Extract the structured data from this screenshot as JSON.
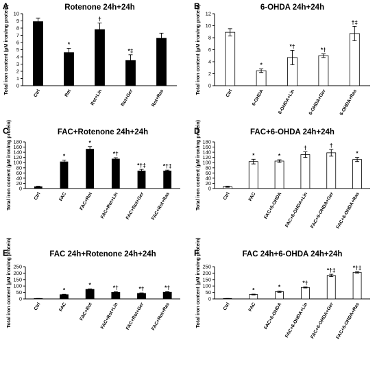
{
  "chart_data": [
    {
      "panel": "A",
      "type": "bar",
      "title": "Rotenone 24h+24h",
      "ylabel": "Total iron content (μM iron/mg protein)",
      "ylim": [
        0,
        10
      ],
      "yticks": [
        0,
        1,
        2,
        3,
        4,
        5,
        6,
        7,
        8,
        9,
        10
      ],
      "bar_fill": "#000000",
      "categories": [
        "Ctrl",
        "Rot",
        "Rot+Lin",
        "Rot+Ger",
        "Rot+Ras"
      ],
      "values": [
        8.9,
        4.6,
        7.8,
        3.5,
        6.6
      ],
      "errors": [
        0.5,
        0.6,
        0.9,
        0.8,
        0.7
      ],
      "annotations": [
        "",
        "*",
        "†",
        "*‡",
        ""
      ]
    },
    {
      "panel": "B",
      "type": "bar",
      "title": "6-OHDA 24h+24h",
      "ylabel": "Total iron content (μM iron/mg protein)",
      "ylim": [
        0,
        12
      ],
      "yticks": [
        0,
        2,
        4,
        6,
        8,
        10,
        12
      ],
      "bar_fill": "#ffffff",
      "categories": [
        "Ctrl",
        "6-OHDA",
        "6-OHDA+Lin",
        "6-OHDA+Ger",
        "6-OHDA+Ras"
      ],
      "values": [
        8.9,
        2.5,
        4.7,
        5.0,
        8.7
      ],
      "errors": [
        0.6,
        0.3,
        1.2,
        0.3,
        1.2
      ],
      "annotations": [
        "",
        "*",
        "*†",
        "*†",
        "†‡"
      ]
    },
    {
      "panel": "C",
      "type": "bar",
      "title": "FAC+Rotenone 24h+24h",
      "ylabel": "Total iron content (μM iron/mg protein)",
      "ylim": [
        0,
        180
      ],
      "yticks": [
        0,
        20,
        40,
        60,
        80,
        100,
        120,
        140,
        160,
        180
      ],
      "bar_fill": "#000000",
      "categories": [
        "Ctrl",
        "FAC",
        "FAC+Rot",
        "FAC+Rot+Lin",
        "FAC+Rot+Ger",
        "FAC+Rot+Ras"
      ],
      "values": [
        7,
        103,
        152,
        114,
        68,
        68
      ],
      "errors": [
        2,
        7,
        10,
        5,
        6,
        3
      ],
      "annotations": [
        "",
        "*",
        "*",
        "*†",
        "*†‡",
        "*†‡"
      ]
    },
    {
      "panel": "D",
      "type": "bar",
      "title": "FAC+6-OHDA 24h+24h",
      "ylabel": "Total iron content (μM iron/mg protein)",
      "ylim": [
        0,
        180
      ],
      "yticks": [
        0,
        20,
        40,
        60,
        80,
        100,
        120,
        140,
        160,
        180
      ],
      "bar_fill": "#ffffff",
      "categories": [
        "Ctrl",
        "FAC",
        "FAC+6-OHDA",
        "FAC+6-OHDA+Lin",
        "FAC+6-OHDA+Ger",
        "FAC+6-OHDA+Ras"
      ],
      "values": [
        7,
        104,
        106,
        131,
        138,
        112
      ],
      "errors": [
        2,
        9,
        5,
        11,
        13,
        8
      ],
      "annotations": [
        "",
        "*",
        "*",
        "†",
        "†",
        "*"
      ]
    },
    {
      "panel": "E",
      "type": "bar",
      "title": "FAC 24h+Rotenone 24h+24h",
      "ylabel": "Total iron content (μM iron/mg protein)",
      "ylim": [
        0,
        250
      ],
      "yticks": [
        0,
        50,
        100,
        150,
        200,
        250
      ],
      "bar_fill": "#000000",
      "categories": [
        "Ctrl",
        "FAC",
        "FAC+Rot",
        "FAC+Rot+Lin",
        "FAC+Rot+Ger",
        "FAC+Rot+Ras"
      ],
      "values": [
        3,
        33,
        74,
        51,
        43,
        52
      ],
      "errors": [
        1,
        3,
        4,
        4,
        4,
        4
      ],
      "annotations": [
        "",
        "*",
        "*",
        "*†",
        "*†",
        "*†"
      ]
    },
    {
      "panel": "F",
      "type": "bar",
      "title": "FAC 24h+6-OHDA 24h+24h",
      "ylabel": "Total iron content (μM iron/mg protein)",
      "ylim": [
        0,
        250
      ],
      "yticks": [
        0,
        50,
        100,
        150,
        200,
        250
      ],
      "bar_fill": "#ffffff",
      "categories": [
        "Ctrl",
        "FAC",
        "FAC+6-OHDA",
        "FAC+6-OHDA+Lin",
        "FAC+6-OHDA+Ger",
        "FAC+6-OHDA+Ras"
      ],
      "values": [
        3,
        34,
        56,
        89,
        182,
        206
      ],
      "errors": [
        1,
        3,
        5,
        4,
        9,
        5
      ],
      "annotations": [
        "",
        "*",
        "*",
        "*†",
        "*†‡",
        "*†‡"
      ]
    }
  ]
}
